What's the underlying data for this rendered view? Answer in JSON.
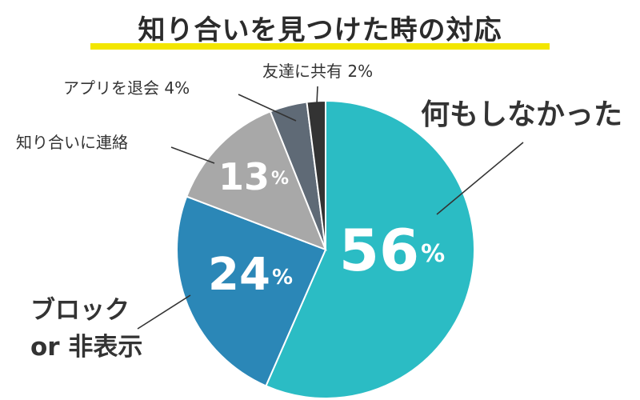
{
  "title": "知り合いを見つけた時の対応",
  "colors": {
    "underline": "#f3e600",
    "leader": "#333333"
  },
  "chart_data": {
    "type": "pie",
    "start": "12 o'clock",
    "direction": "clockwise",
    "slices": [
      {
        "label": "何もしなかった",
        "value": 56,
        "display": "56",
        "unit": "%",
        "color": "#2bbcc4"
      },
      {
        "label_lines": [
          "ブロック",
          "or 非表示"
        ],
        "value": 24,
        "display": "24",
        "unit": "%",
        "color": "#2b87b7"
      },
      {
        "label": "知り合いに連絡",
        "value": 13,
        "display": "13",
        "unit": "%",
        "color": "#a8a8a8"
      },
      {
        "label": "アプリを退会 4%",
        "value": 4,
        "color": "#5f6a76"
      },
      {
        "label": "友達に共有 2%",
        "value": 2,
        "color": "#333333"
      }
    ]
  }
}
